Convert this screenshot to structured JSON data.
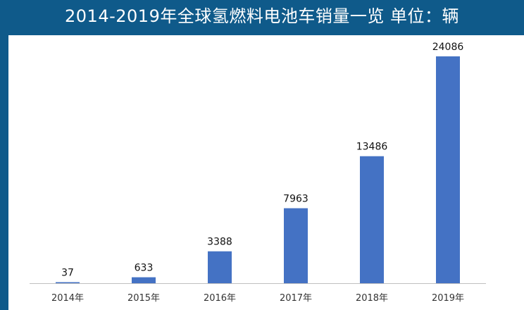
{
  "title": "2014-2019年全球氢燃料电池车销量一览 单位：辆",
  "colors": {
    "header_bg": "#0f5a8a",
    "bar": "#4472c4",
    "axis": "#bfbfbf"
  },
  "chart_data": {
    "type": "bar",
    "title": "2014-2019年全球氢燃料电池车销量一览 单位：辆",
    "xlabel": "",
    "ylabel": "",
    "categories": [
      "2014年",
      "2015年",
      "2016年",
      "2017年",
      "2018年",
      "2019年"
    ],
    "values": [
      37,
      633,
      3388,
      7963,
      13486,
      24086
    ],
    "data_labels": [
      "37",
      "633",
      "3388",
      "7963",
      "13486",
      "24086"
    ],
    "ylim": [
      0,
      24086
    ],
    "grid": false,
    "legend": "none"
  }
}
